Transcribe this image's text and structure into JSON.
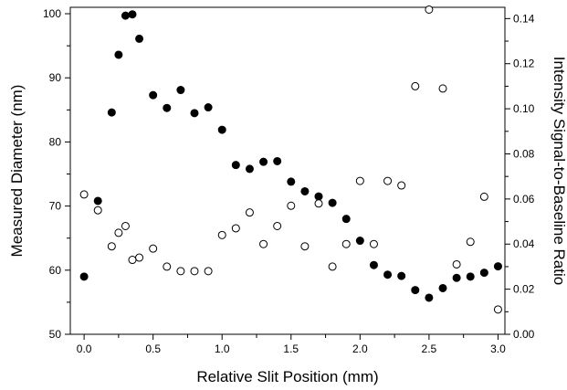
{
  "chart_data": {
    "type": "scatter",
    "xlabel": "Relative Slit Position (mm)",
    "ylabel": "Measured Diameter (nm)",
    "y2label": "Intensity Signal-to-Baseline Ratio",
    "xlim": [
      -0.1,
      3.05
    ],
    "ylim": [
      50,
      101
    ],
    "y2lim": [
      0.0,
      0.145
    ],
    "xticks": [
      "0.0",
      "0.5",
      "1.0",
      "1.5",
      "2.0",
      "2.5",
      "3.0"
    ],
    "yticks": [
      "50",
      "60",
      "70",
      "80",
      "90",
      "100"
    ],
    "y2ticks": [
      "0.00",
      "0.02",
      "0.04",
      "0.06",
      "0.08",
      "0.10",
      "0.12",
      "0.14"
    ],
    "grid": false,
    "series": [
      {
        "marker": "filled-circle",
        "axis": "left",
        "x": [
          0.0,
          0.1,
          0.2,
          0.25,
          0.3,
          0.35,
          0.4,
          0.5,
          0.6,
          0.7,
          0.8,
          0.9,
          1.0,
          1.1,
          1.2,
          1.3,
          1.4,
          1.5,
          1.6,
          1.7,
          1.8,
          1.9,
          2.0,
          2.1,
          2.2,
          2.3,
          2.4,
          2.5,
          2.6,
          2.7,
          2.8,
          2.9,
          3.0
        ],
        "y": [
          59.0,
          70.8,
          84.6,
          93.6,
          99.7,
          99.9,
          96.1,
          87.3,
          85.3,
          88.1,
          84.5,
          85.4,
          81.9,
          76.4,
          75.8,
          76.9,
          77.0,
          73.8,
          72.3,
          71.5,
          70.5,
          68.0,
          64.6,
          60.8,
          59.3,
          59.1,
          56.9,
          55.7,
          57.2,
          58.8,
          59.0,
          59.6,
          60.6
        ]
      },
      {
        "marker": "open-circle",
        "axis": "right",
        "x": [
          0.0,
          0.1,
          0.2,
          0.25,
          0.3,
          0.35,
          0.4,
          0.5,
          0.6,
          0.7,
          0.8,
          0.9,
          1.0,
          1.1,
          1.2,
          1.3,
          1.4,
          1.5,
          1.6,
          1.7,
          1.8,
          1.9,
          2.0,
          2.1,
          2.2,
          2.3,
          2.4,
          2.5,
          2.6,
          2.7,
          2.8,
          2.9,
          3.0
        ],
        "y": [
          0.062,
          0.055,
          0.039,
          0.045,
          0.048,
          0.033,
          0.034,
          0.038,
          0.03,
          0.028,
          0.028,
          0.028,
          0.044,
          0.047,
          0.054,
          0.04,
          0.048,
          0.057,
          0.039,
          0.058,
          0.03,
          0.04,
          0.068,
          0.04,
          0.068,
          0.066,
          0.11,
          0.144,
          0.109,
          0.031,
          0.041,
          0.061,
          0.011
        ]
      }
    ]
  }
}
